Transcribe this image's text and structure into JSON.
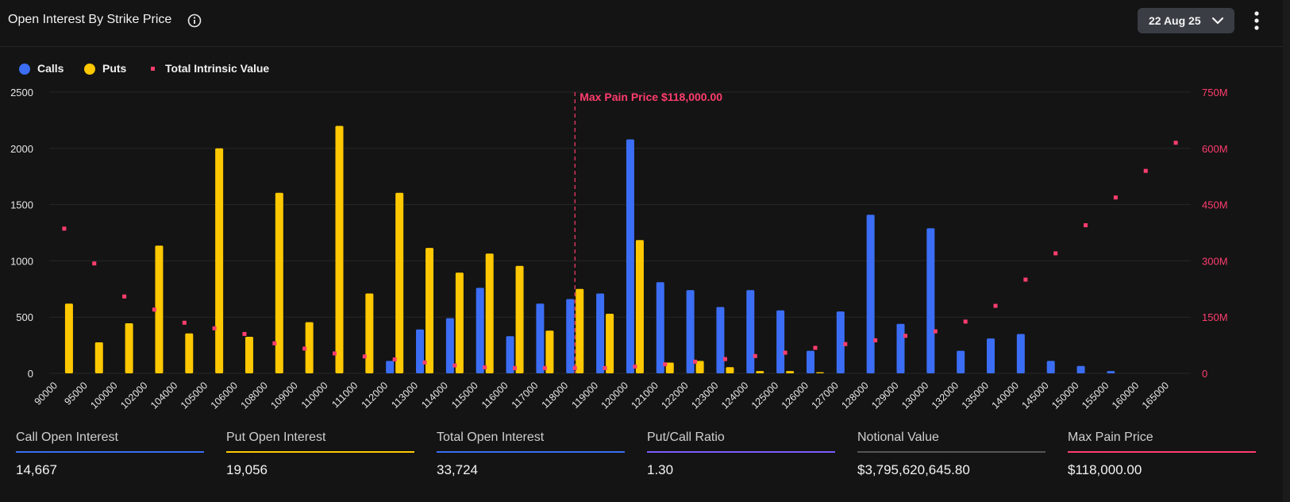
{
  "header": {
    "title": "Open Interest By Strike Price",
    "date_label": "22 Aug 25"
  },
  "legend": {
    "calls": "Calls",
    "puts": "Puts",
    "intrinsic": "Total Intrinsic Value"
  },
  "colors": {
    "calls": "#3b6ef5",
    "puts": "#ffc800",
    "intrinsic": "#ff3d6e",
    "max_pain": "#ff3d6e",
    "background": "#141414"
  },
  "chart_data": {
    "type": "bar",
    "categories": [
      "90000",
      "95000",
      "100000",
      "102000",
      "104000",
      "105000",
      "106000",
      "108000",
      "109000",
      "110000",
      "111000",
      "112000",
      "113000",
      "114000",
      "115000",
      "116000",
      "117000",
      "118000",
      "119000",
      "120000",
      "121000",
      "122000",
      "123000",
      "124000",
      "125000",
      "126000",
      "127000",
      "128000",
      "129000",
      "130000",
      "132000",
      "135000",
      "140000",
      "145000",
      "150000",
      "155000",
      "160000",
      "165000"
    ],
    "series": [
      {
        "name": "Calls",
        "axis": "left",
        "values": [
          0,
          0,
          0,
          0,
          0,
          0,
          0,
          0,
          0,
          0,
          0,
          110,
          390,
          490,
          760,
          330,
          620,
          660,
          710,
          2080,
          810,
          740,
          590,
          740,
          560,
          200,
          550,
          1410,
          440,
          1290,
          200,
          310,
          350,
          110,
          65,
          20,
          0,
          0
        ]
      },
      {
        "name": "Puts",
        "axis": "left",
        "values": [
          620,
          275,
          445,
          1135,
          355,
          2000,
          325,
          1605,
          455,
          2200,
          710,
          1605,
          1115,
          895,
          1065,
          955,
          380,
          750,
          530,
          1185,
          95,
          110,
          55,
          20,
          20,
          10,
          0,
          0,
          0,
          0,
          0,
          0,
          0,
          0,
          0,
          0,
          0,
          0
        ]
      },
      {
        "name": "Total Intrinsic Value",
        "axis": "right",
        "type": "scatter",
        "values": [
          386,
          293,
          205,
          170,
          135,
          120,
          105,
          80,
          66,
          53,
          45,
          37,
          29,
          21,
          16,
          14,
          14,
          14,
          14,
          18,
          24,
          31,
          38,
          46,
          55,
          68,
          78,
          88,
          100,
          112,
          138,
          180,
          250,
          320,
          395,
          469,
          540,
          615
        ]
      }
    ],
    "yaxis_left": {
      "min": 0,
      "max": 2500,
      "ticks": [
        "0",
        "500",
        "1000",
        "1500",
        "2000",
        "2500"
      ],
      "tick_values": [
        0,
        500,
        1000,
        1500,
        2000,
        2500
      ]
    },
    "yaxis_right": {
      "min": 0,
      "max": 750,
      "ticks": [
        "0",
        "150M",
        "300M",
        "450M",
        "600M",
        "750M"
      ],
      "tick_values": [
        0,
        150,
        300,
        450,
        600,
        750
      ]
    },
    "annotation": {
      "label": "Max Pain Price $118,000.00",
      "category": "118000"
    },
    "grid": true,
    "legend_position": "top-left"
  },
  "stats": [
    {
      "label": "Call Open Interest",
      "value": "14,667",
      "color": "#3b6ef5"
    },
    {
      "label": "Put Open Interest",
      "value": "19,056",
      "color": "#ffc800"
    },
    {
      "label": "Total Open Interest",
      "value": "33,724",
      "color": "#3b6ef5"
    },
    {
      "label": "Put/Call Ratio",
      "value": "1.30",
      "color": "#7a5cff"
    },
    {
      "label": "Notional Value",
      "value": "$3,795,620,645.80",
      "color": "#555555"
    },
    {
      "label": "Max Pain Price",
      "value": "$118,000.00",
      "color": "#ff3d6e"
    }
  ]
}
